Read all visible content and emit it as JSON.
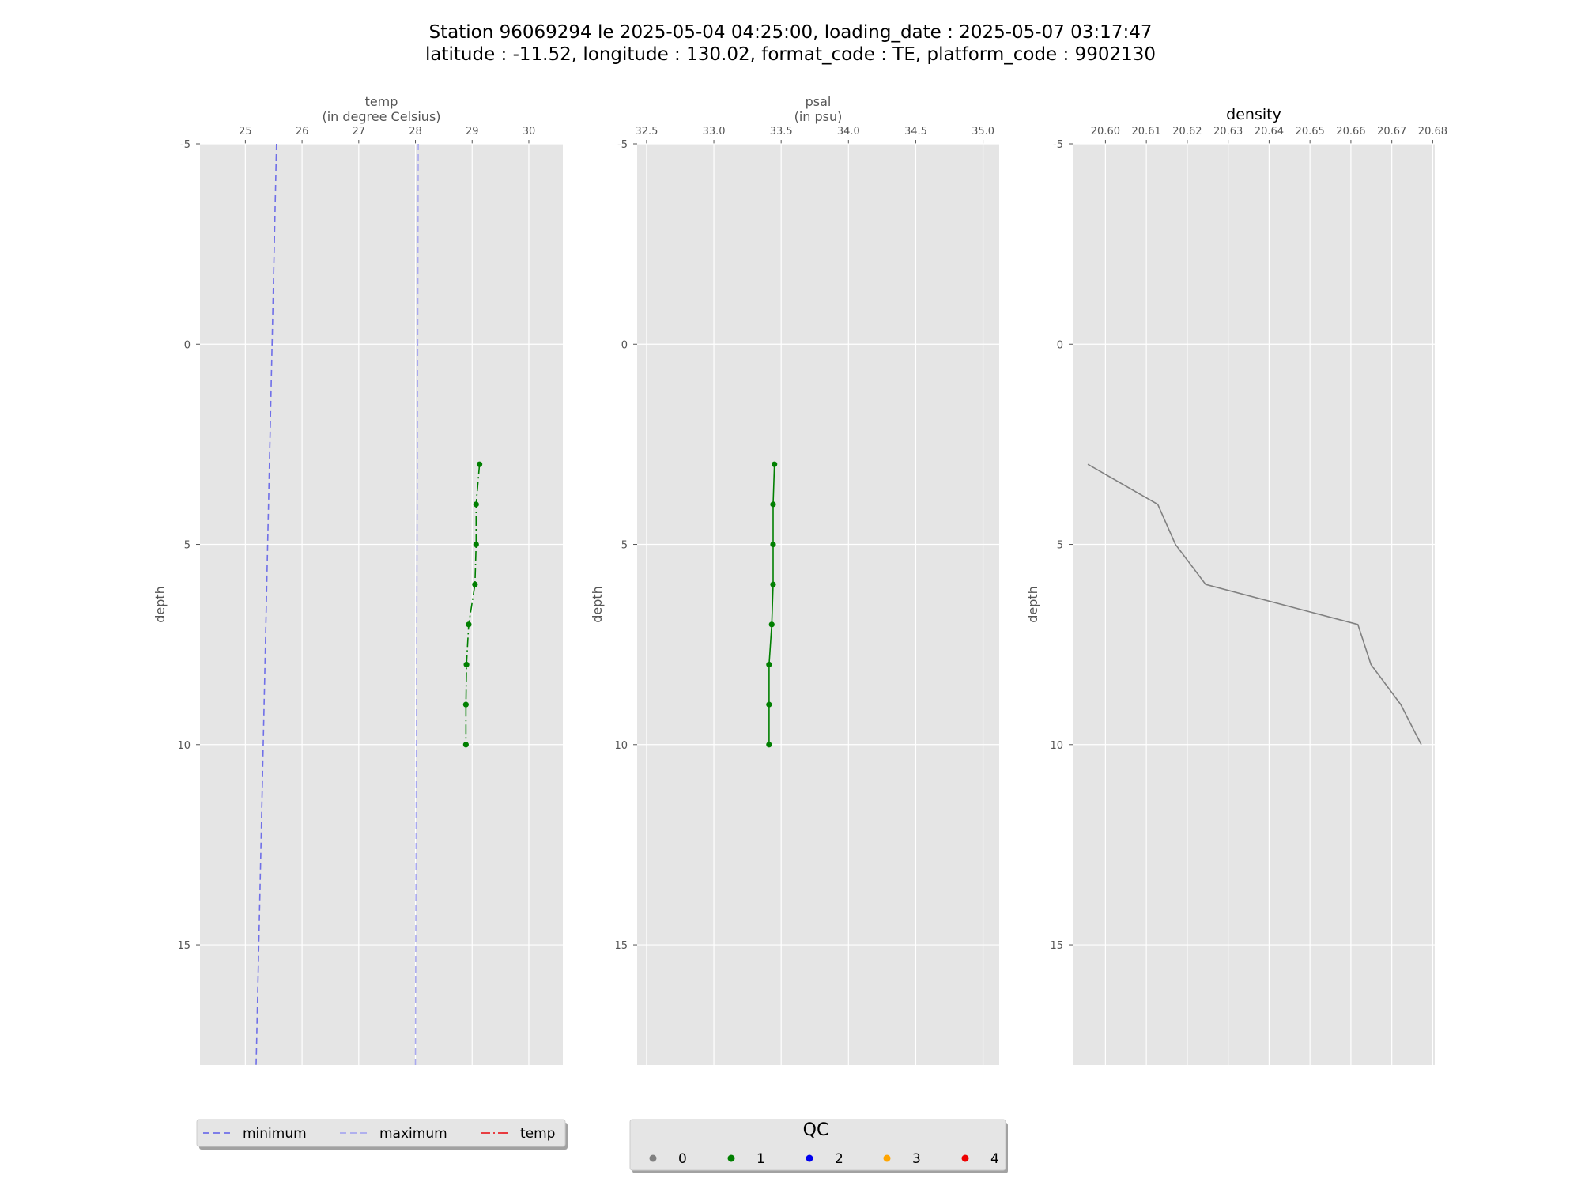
{
  "figure": {
    "title_line1": "Station 96069294 le 2025-05-04 04:25:00, loading_date : 2025-05-07 03:17:47",
    "title_line2": "latitude : -11.52, longitude : 130.02, format_code : TE, platform_code : 9902130"
  },
  "colors": {
    "panel_bg": "#e5e5e5",
    "grid": "#ffffff",
    "minimum": "#6f6fe8",
    "maximum": "#a9a9ef",
    "temp_legend": "#e8262b",
    "qc_1": "#007f00",
    "density_line": "#808080"
  },
  "chart_data": [
    {
      "type": "line",
      "panel": "temp",
      "xlabel_line1": "temp",
      "xlabel_line2": "(in degree Celsius)",
      "ylabel": "depth",
      "x_axis_position": "top",
      "y_inverted": true,
      "xlim": [
        24.2,
        30.6
      ],
      "ylim": [
        18,
        -5
      ],
      "xticks": [
        25,
        26,
        27,
        28,
        29,
        30
      ],
      "yticks": [
        -5,
        0,
        5,
        10,
        15
      ],
      "grid": true,
      "series": [
        {
          "name": "minimum",
          "style": "dashed",
          "color": "#6f6fe8",
          "x": [
            25.55,
            25.19
          ],
          "y": [
            -5,
            18
          ]
        },
        {
          "name": "maximum",
          "style": "dashed",
          "color": "#a9a9ef",
          "x": [
            28.05,
            28.0
          ],
          "y": [
            -5,
            18
          ]
        },
        {
          "name": "temp",
          "style": "dashdot",
          "color": "#007f00",
          "markers": true,
          "qc": 1,
          "x": [
            29.13,
            29.07,
            29.07,
            29.05,
            28.94,
            28.9,
            28.89,
            28.89
          ],
          "y": [
            3,
            4,
            5,
            6,
            7,
            8,
            9,
            10
          ]
        }
      ]
    },
    {
      "type": "line",
      "panel": "psal",
      "xlabel_line1": "psal",
      "xlabel_line2": "(in psu)",
      "ylabel": "depth",
      "x_axis_position": "top",
      "y_inverted": true,
      "xlim": [
        32.43,
        35.12
      ],
      "ylim": [
        18,
        -5
      ],
      "xticks": [
        32.5,
        33.0,
        33.5,
        34.0,
        34.5,
        35.0
      ],
      "xtick_labels": [
        "32.5",
        "33.0",
        "33.5",
        "34.0",
        "34.5",
        "35.0"
      ],
      "yticks": [
        -5,
        0,
        5,
        10,
        15
      ],
      "grid": true,
      "series": [
        {
          "style": "solid",
          "color": "#007f00",
          "markers": true,
          "qc": 1,
          "x": [
            33.45,
            33.44,
            33.44,
            33.44,
            33.43,
            33.41,
            33.41,
            33.41
          ],
          "y": [
            3,
            4,
            5,
            6,
            7,
            8,
            9,
            10
          ]
        }
      ]
    },
    {
      "type": "line",
      "panel": "density",
      "title": "density",
      "ylabel": "depth",
      "x_axis_position": "top",
      "y_inverted": true,
      "xlim": [
        20.592,
        20.6805
      ],
      "ylim": [
        18,
        -5
      ],
      "xticks": [
        20.6,
        20.61,
        20.62,
        20.63,
        20.64,
        20.65,
        20.66,
        20.67,
        20.68
      ],
      "xtick_labels": [
        "20.60",
        "20.61",
        "20.62",
        "20.63",
        "20.64",
        "20.65",
        "20.66",
        "20.67",
        "20.68"
      ],
      "yticks": [
        -5,
        0,
        5,
        10,
        15
      ],
      "grid": true,
      "series": [
        {
          "style": "solid",
          "color": "#808080",
          "markers": false,
          "x": [
            20.5957,
            20.6128,
            20.6171,
            20.6245,
            20.6617,
            20.6649,
            20.6722,
            20.6772
          ],
          "y": [
            3,
            4,
            5,
            6,
            7,
            8,
            9,
            10
          ]
        }
      ]
    }
  ],
  "legend_lines": {
    "items": [
      {
        "label": "minimum",
        "color": "#6f6fe8",
        "dash": "8,5"
      },
      {
        "label": "maximum",
        "color": "#a9a9ef",
        "dash": "8,5"
      },
      {
        "label": "temp",
        "color": "#e8262b",
        "dash": "12,4,2,4"
      }
    ]
  },
  "legend_qc": {
    "title": "QC",
    "items": [
      {
        "label": "0",
        "color": "#808080"
      },
      {
        "label": "1",
        "color": "#007f00"
      },
      {
        "label": "2",
        "color": "#0000ee"
      },
      {
        "label": "3",
        "color": "#ffa500"
      },
      {
        "label": "4",
        "color": "#ee0000"
      }
    ]
  }
}
